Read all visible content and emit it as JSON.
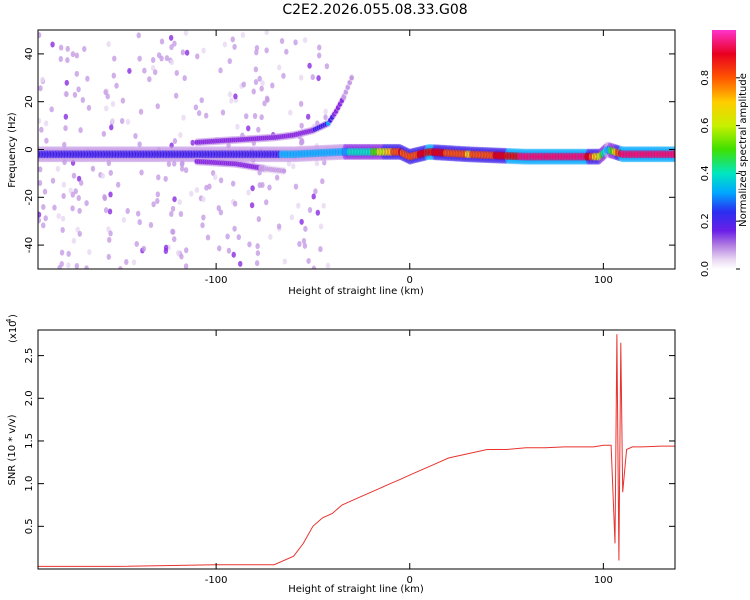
{
  "figure_title": "C2E2.2026.055.08.33.G08",
  "colors": {
    "snr_line": "#e8332f",
    "spectrogram_background": "#ffffff",
    "colormap": [
      "#e9d8f3",
      "#c69be5",
      "#8a2be2",
      "#3a1ee8",
      "#00a8ff",
      "#00e6c0",
      "#3fe000",
      "#c8f000",
      "#ffcc00",
      "#ff5500",
      "#e80000",
      "#ff0066",
      "#ff33cc"
    ]
  },
  "chart_data": [
    {
      "type": "heatmap",
      "title": "C2E2.2026.055.08.33.G08",
      "xlabel": "Height of straight line (km)",
      "ylabel": "Frequency (Hz)",
      "xlim": [
        -192,
        137
      ],
      "ylim": [
        -50,
        50
      ],
      "xticks": [
        -100,
        0,
        100
      ],
      "yticks": [
        -40,
        -20,
        0,
        20,
        40
      ],
      "colorbar": {
        "label": "Normalized spectral amplitude",
        "range": [
          0,
          1
        ],
        "ticks": [
          0.0,
          0.2,
          0.4,
          0.6,
          0.8
        ]
      },
      "ridges": [
        {
          "name": "main carrier ridge",
          "x": [
            -192,
            -150,
            -100,
            -60,
            -35,
            -20,
            -5,
            0,
            10,
            30,
            60,
            90,
            98,
            102,
            110,
            137
          ],
          "freq_hz": [
            -2,
            -2,
            -2,
            -2,
            -1,
            -1,
            -1,
            -3,
            -1,
            -2,
            -3,
            -3,
            -3,
            0,
            -2,
            -2
          ],
          "amplitude": [
            0.25,
            0.22,
            0.25,
            0.3,
            0.35,
            0.45,
            0.8,
            0.75,
            0.85,
            0.7,
            0.9,
            0.9,
            0.6,
            0.3,
            0.95,
            0.95
          ]
        },
        {
          "name": "upper branch",
          "x": [
            -110,
            -90,
            -70,
            -60,
            -50,
            -42,
            -38,
            -34,
            -30
          ],
          "freq_hz": [
            3,
            4,
            5,
            6,
            8,
            11,
            16,
            22,
            30
          ],
          "amplitude": [
            0.2,
            0.2,
            0.15,
            0.15,
            0.2,
            0.3,
            0.15,
            0.12,
            0.1
          ]
        },
        {
          "name": "lower branch",
          "x": [
            -110,
            -90,
            -75,
            -65
          ],
          "freq_hz": [
            -5,
            -6,
            -8,
            -9
          ],
          "amplitude": [
            0.15,
            0.15,
            0.12,
            0.1
          ]
        }
      ]
    },
    {
      "type": "line",
      "xlabel": "Height of straight line (km)",
      "ylabel": "SNR (10 * v/v)",
      "y_scale_label": "(x10",
      "y_scale_exponent": "4",
      "xlim": [
        -192,
        137
      ],
      "ylim": [
        0,
        2.8
      ],
      "xticks": [
        -100,
        0,
        100
      ],
      "yticks": [
        0.5,
        1.0,
        1.5,
        2.0,
        2.5
      ],
      "series": [
        {
          "name": "SNR",
          "x": [
            -192,
            -150,
            -100,
            -90,
            -70,
            -60,
            -55,
            -50,
            -45,
            -40,
            -35,
            -30,
            -25,
            -20,
            -15,
            -10,
            -5,
            0,
            5,
            10,
            15,
            20,
            30,
            40,
            50,
            60,
            70,
            80,
            90,
            95,
            100,
            104,
            106,
            107,
            108,
            109,
            110,
            112,
            115,
            120,
            130,
            137
          ],
          "y": [
            0.03,
            0.03,
            0.05,
            0.05,
            0.05,
            0.15,
            0.3,
            0.5,
            0.6,
            0.65,
            0.75,
            0.8,
            0.85,
            0.9,
            0.95,
            1.0,
            1.05,
            1.1,
            1.15,
            1.2,
            1.25,
            1.3,
            1.35,
            1.4,
            1.4,
            1.42,
            1.42,
            1.43,
            1.43,
            1.43,
            1.45,
            1.45,
            0.3,
            2.75,
            0.1,
            2.65,
            0.9,
            1.4,
            1.43,
            1.43,
            1.44,
            1.44
          ]
        }
      ]
    }
  ]
}
